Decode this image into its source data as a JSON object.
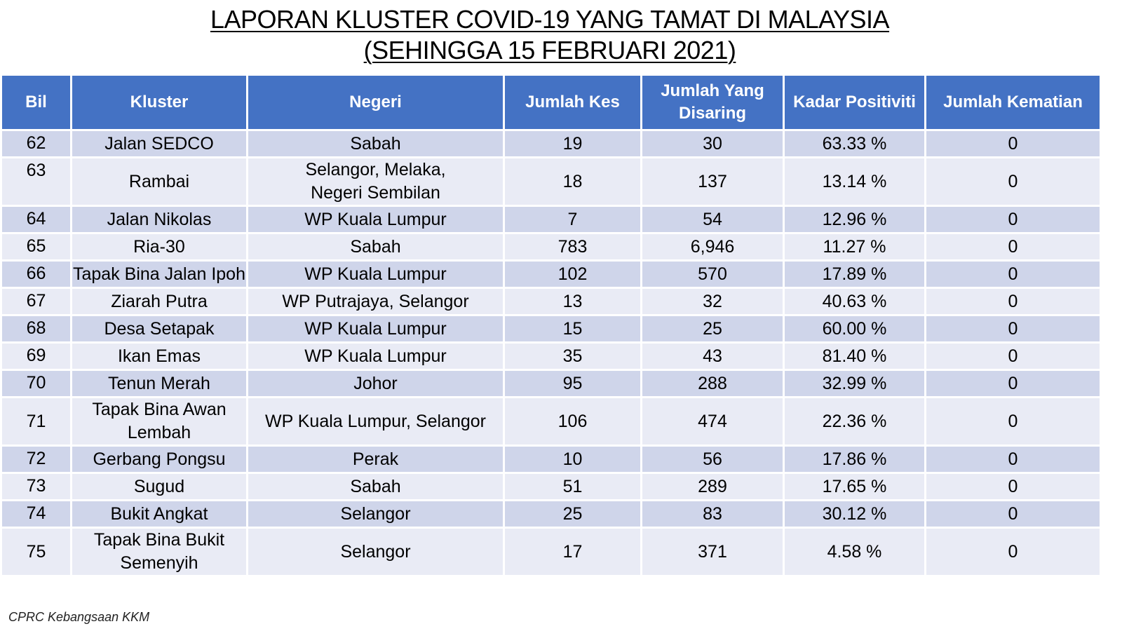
{
  "title": {
    "line1": "LAPORAN KLUSTER COVID-19 YANG TAMAT DI MALAYSIA",
    "line2": "(SEHINGGA  15 FEBRUARI 2021)"
  },
  "table": {
    "headers": [
      "Bil",
      "Kluster",
      "Negeri",
      "Jumlah Kes",
      "Jumlah Yang Disaring",
      "Kadar Positiviti",
      "Jumlah Kematian"
    ],
    "rows": [
      [
        "62",
        "Jalan SEDCO",
        "Sabah",
        "19",
        "30",
        "63.33 %",
        "0"
      ],
      [
        "63",
        "Rambai",
        "Selangor, Melaka, Negeri Sembilan",
        "18",
        "137",
        "13.14 %",
        "0"
      ],
      [
        "64",
        "Jalan Nikolas",
        "WP Kuala Lumpur",
        "7",
        "54",
        "12.96 %",
        "0"
      ],
      [
        "65",
        "Ria-30",
        "Sabah",
        "783",
        "6,946",
        "11.27 %",
        "0"
      ],
      [
        "66",
        "Tapak Bina Jalan Ipoh",
        "WP Kuala Lumpur",
        "102",
        "570",
        "17.89 %",
        "0"
      ],
      [
        "67",
        "Ziarah Putra",
        "WP Putrajaya, Selangor",
        "13",
        "32",
        "40.63 %",
        "0"
      ],
      [
        "68",
        "Desa Setapak",
        "WP Kuala Lumpur",
        "15",
        "25",
        "60.00 %",
        "0"
      ],
      [
        "69",
        "Ikan Emas",
        "WP Kuala Lumpur",
        "35",
        "43",
        "81.40 %",
        "0"
      ],
      [
        "70",
        "Tenun Merah",
        "Johor",
        "95",
        "288",
        "32.99 %",
        "0"
      ],
      [
        "71",
        "Tapak Bina Awan Lembah",
        "WP Kuala Lumpur, Selangor",
        "106",
        "474",
        "22.36 %",
        "0"
      ],
      [
        "72",
        "Gerbang Pongsu",
        "Perak",
        "10",
        "56",
        "17.86 %",
        "0"
      ],
      [
        "73",
        "Sugud",
        "Sabah",
        "51",
        "289",
        "17.65 %",
        "0"
      ],
      [
        "74",
        "Bukit Angkat",
        "Selangor",
        "25",
        "83",
        "30.12 %",
        "0"
      ],
      [
        "75",
        "Tapak Bina Bukit Semenyih",
        "Selangor",
        "17",
        "371",
        "4.58 %",
        "0"
      ]
    ]
  },
  "footer": "CPRC Kebangsaan KKM",
  "colors": {
    "header_bg": "#4472c4",
    "row_dark": "#cfd5ea",
    "row_light": "#e9ebf5"
  }
}
